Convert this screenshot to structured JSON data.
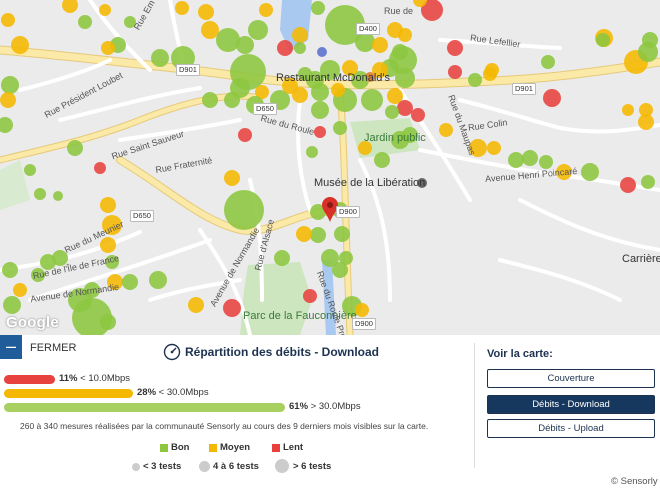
{
  "map": {
    "google_logo": "Google",
    "labels": {
      "restaurant": "Restaurant McDonald's",
      "jardin": "Jardin public",
      "musee": "Musée de la Libération",
      "parc": "Parc de la Fauconnière",
      "carriere": "Carrière",
      "rue_president_loubet": "Rue Président Loubet",
      "rue_saint_sauveur": "Rue Saint Sauveur",
      "rue_fraternite": "Rue Fraternité",
      "rue_meunier": "Rue du Meunier",
      "rue_ile_de_france": "Rue de l'Île de France",
      "avenue_normandie": "Avenue de Normandie",
      "avenue_normandie_2": "Avenue de Normandie",
      "rue_alsace": "Rue d'Alsace",
      "rue_roule": "Rue du Roule",
      "rue_roule_2": "Rue du Roule Pro",
      "rue_lefebvre": "Rue Lefellier",
      "rue_colin": "Rue Colin",
      "rue_maupas": "Rue du Maupas",
      "avenue_henri_poincare": "Avenue Henri Poincaré",
      "rue_ema": "Rue Em",
      "rue_de": "Rue de"
    },
    "routes": {
      "d901_a": "D901",
      "d901_b": "D901",
      "d650_a": "D650",
      "d650_b": "D650",
      "d900_a": "D900",
      "d900_b": "D900",
      "d400": "D400"
    },
    "marker_icon": "map-pin-icon",
    "dot_colors": {
      "bon": "#8cc63f",
      "moyen": "#f5b800",
      "lent": "#e8423f"
    }
  },
  "panel": {
    "fermer_icon": "minus-icon",
    "fermer_label": "FERMER",
    "title_icon": "speedometer-icon",
    "title": "Répartition des débits - Download",
    "bars": [
      {
        "percent": 11,
        "pct_label": "11%",
        "range": " < 10.0Mbps",
        "color": "#e8423f"
      },
      {
        "percent": 28,
        "pct_label": "28%",
        "range": " < 30.0Mbps",
        "color": "#f5b800"
      },
      {
        "percent": 61,
        "pct_label": "61%",
        "range": " > 30.0Mbps",
        "color": "#a8d060"
      }
    ],
    "summary": "260 à 340 mesures réalisées par la communauté Sensorly au cours des 9 derniers mois visibles sur la carte.",
    "legend": {
      "bon": {
        "label": "Bon",
        "color": "#8cc63f"
      },
      "moyen": {
        "label": "Moyen",
        "color": "#f5b800"
      },
      "lent": {
        "label": "Lent",
        "color": "#e8423f"
      }
    },
    "sizes": {
      "small": "< 3 tests",
      "medium": "4 à 6 tests",
      "large": "> 6 tests"
    },
    "voir": {
      "title": "Voir la carte:",
      "buttons": {
        "couverture": "Couverture",
        "download": "Débits - Download",
        "upload": "Débits - Upload"
      },
      "active": "download"
    },
    "copyright": "© Sensorly"
  }
}
